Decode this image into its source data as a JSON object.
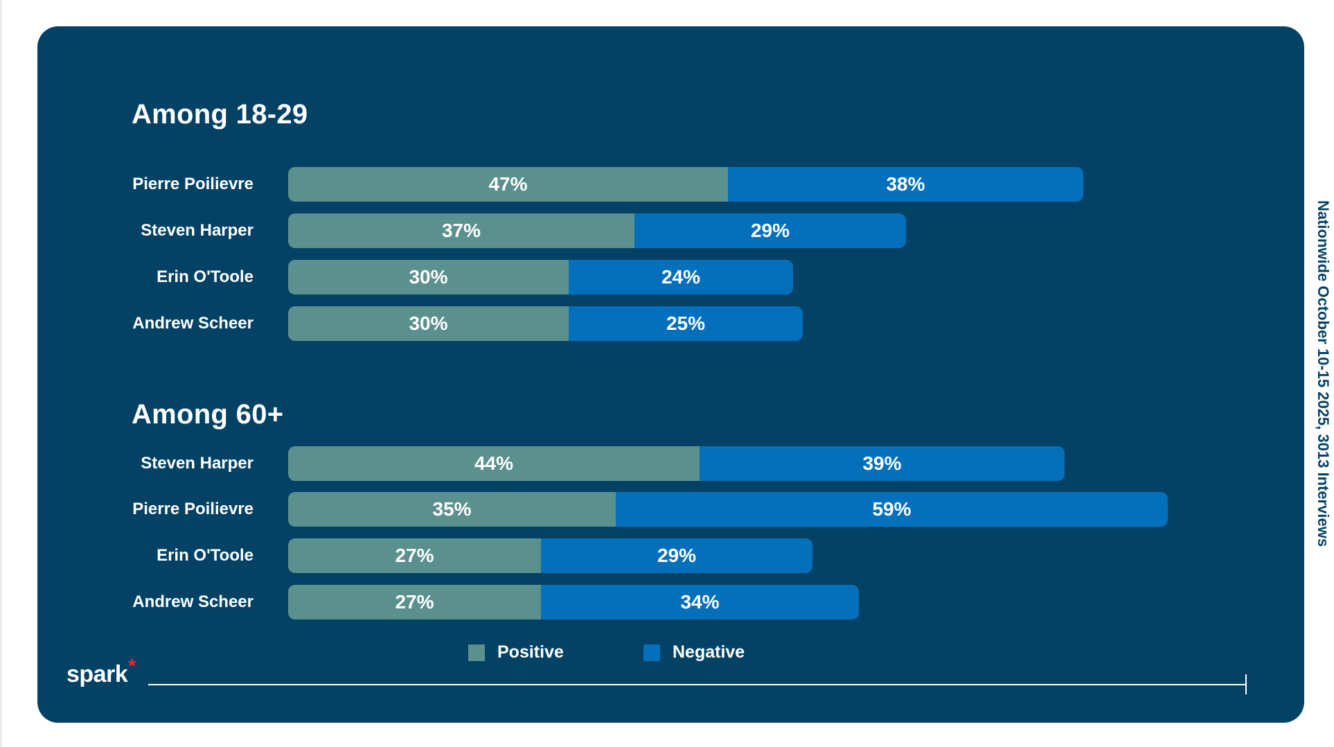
{
  "colors": {
    "background": "#034265",
    "positive": "#5a908d",
    "negative": "#0470bb",
    "brand_accent": "#e8293a"
  },
  "chart_data": [
    {
      "type": "bar",
      "orientation": "horizontal",
      "stacked": true,
      "title": "Among 18-29",
      "categories": [
        "Pierre Poilievre",
        "Steven Harper",
        "Erin O'Toole",
        "Andrew Scheer"
      ],
      "series": [
        {
          "name": "Positive",
          "values": [
            47,
            37,
            30,
            30
          ],
          "labels": [
            "47%",
            "37%",
            "30%",
            "30%"
          ]
        },
        {
          "name": "Negative",
          "values": [
            38,
            29,
            24,
            25
          ],
          "labels": [
            "38%",
            "29%",
            "24%",
            "25%"
          ]
        }
      ],
      "unit": "%",
      "xlim": [
        0,
        100
      ]
    },
    {
      "type": "bar",
      "orientation": "horizontal",
      "stacked": true,
      "title": "Among 60+",
      "categories": [
        "Steven Harper",
        "Pierre Poilievre",
        "Erin O'Toole",
        "Andrew Scheer"
      ],
      "series": [
        {
          "name": "Positive",
          "values": [
            44,
            35,
            27,
            27
          ],
          "labels": [
            "44%",
            "35%",
            "27%",
            "27%"
          ]
        },
        {
          "name": "Negative",
          "values": [
            39,
            59,
            29,
            34
          ],
          "labels": [
            "39%",
            "59%",
            "29%",
            "34%"
          ]
        }
      ],
      "unit": "%",
      "xlim": [
        0,
        100
      ]
    }
  ],
  "legend": {
    "positive_label": "Positive",
    "negative_label": "Negative"
  },
  "logo": {
    "text": "spark",
    "mark": "*"
  },
  "source_note": "Nationwide October 10-15 2025, 3013 Interviews"
}
